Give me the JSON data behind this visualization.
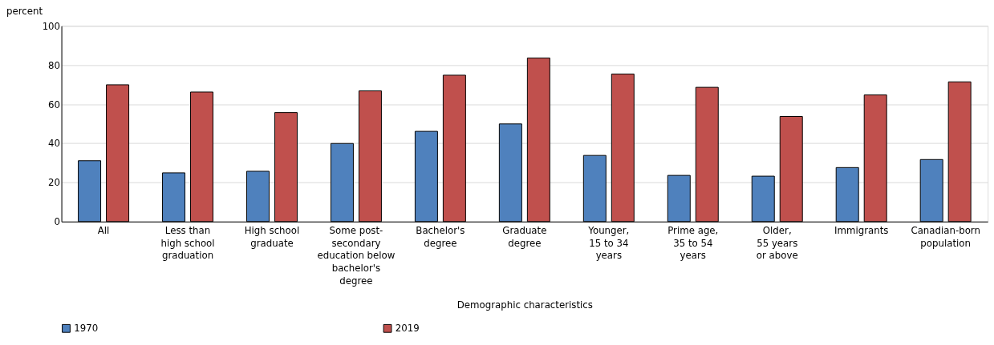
{
  "chart_data": {
    "type": "bar",
    "ylabel": "percent",
    "xlabel": "Demographic characteristics",
    "categories": [
      "All",
      "Less than\nhigh school\ngraduation",
      "High school\ngraduate",
      "Some post-\nsecondary\neducation below\nbachelor's\ndegree",
      "Bachelor's\ndegree",
      "Graduate\ndegree",
      "Younger,\n15 to 34\nyears",
      "Prime age,\n35 to 54\nyears",
      "Older,\n55 years\nor above",
      "Immigrants",
      "Canadian-born\npopulation"
    ],
    "series": [
      {
        "name": "1970",
        "color": "#4f81bd",
        "values": [
          31.1,
          24.9,
          25.7,
          39.9,
          46.1,
          49.9,
          33.8,
          23.6,
          23.2,
          27.6,
          31.7
        ]
      },
      {
        "name": "2019",
        "color": "#c0504d",
        "values": [
          69.9,
          66.2,
          55.7,
          66.8,
          74.8,
          83.6,
          75.4,
          68.6,
          53.7,
          64.7,
          71.4
        ]
      }
    ],
    "ylim": [
      0,
      100
    ],
    "yticks": [
      0,
      20,
      40,
      60,
      80,
      100
    ],
    "grid": "y",
    "legend": "bottom"
  }
}
